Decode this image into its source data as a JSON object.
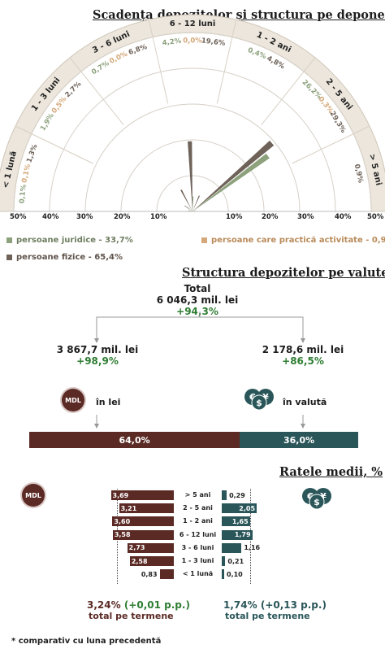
{
  "radial": {
    "title": "Scadența depozitelor și structura pe deponenți",
    "axis_ticks": [
      "50%",
      "40%",
      "30%",
      "20%",
      "10%",
      "10%",
      "20%",
      "30%",
      "40%",
      "50%"
    ],
    "legend": [
      {
        "label": "persoane juridice - 33,7%",
        "color": "#8da17c"
      },
      {
        "label": "persoane care practică activitate - 0,9%",
        "color": "#d4a87a"
      },
      {
        "label": "persoane fizice - 65,4%",
        "color": "#6e6259"
      }
    ]
  },
  "chart_data": [
    {
      "type": "radial-bar",
      "title": "Scadența depozitelor și structura pe deponenți",
      "categories": [
        "< 1 lună",
        "1 - 3 luni",
        "3 - 6 luni",
        "6 - 12 luni",
        "1 - 2 ani",
        "2 - 5 ani",
        "> 5 ani"
      ],
      "range": [
        0,
        50
      ],
      "series": [
        {
          "name": "persoane juridice",
          "color": "#8da17c",
          "values": [
            0.1,
            1.9,
            0.7,
            4.2,
            0.4,
            26.2,
            null
          ]
        },
        {
          "name": "persoane care practică activitate",
          "color": "#d4a87a",
          "values": [
            0.1,
            0.5,
            0.0,
            0.0,
            null,
            0.3,
            null
          ]
        },
        {
          "name": "persoane fizice",
          "color": "#6e6259",
          "values": [
            1.3,
            2.7,
            6.8,
            19.6,
            4.8,
            29.3,
            0.9
          ]
        }
      ],
      "labels": [
        {
          "text": "0,1%",
          "color": "#8da17c"
        },
        {
          "text": "0,1%",
          "color": "#d4a87a"
        },
        {
          "text": "1,3%",
          "color": "#6e6259"
        },
        {
          "text": "1,9%",
          "color": "#8da17c"
        },
        {
          "text": "0,5%",
          "color": "#d4a87a"
        },
        {
          "text": "2,7%",
          "color": "#6e6259"
        },
        {
          "text": "0,7%",
          "color": "#8da17c"
        },
        {
          "text": "0,0%",
          "color": "#d4a87a"
        },
        {
          "text": "6,8%",
          "color": "#6e6259"
        },
        {
          "text": "4,2%",
          "color": "#8da17c"
        },
        {
          "text": "0,0%",
          "color": "#d4a87a"
        },
        {
          "text": "19,6%",
          "color": "#6e6259"
        },
        {
          "text": "0,4%",
          "color": "#8da17c"
        },
        {
          "text": "4,8%",
          "color": "#6e6259"
        },
        {
          "text": "26,2%",
          "color": "#8da17c"
        },
        {
          "text": "0,3%",
          "color": "#d4a87a"
        },
        {
          "text": "29,3%",
          "color": "#6e6259"
        },
        {
          "text": "0,9%",
          "color": "#6e6259"
        }
      ]
    },
    {
      "type": "bar",
      "title": "Structura depozitelor pe valute*",
      "categories": [
        "64,0%",
        "36,0%"
      ],
      "values": [
        64.0,
        36.0
      ],
      "colors": [
        "#5b2a25",
        "#2a5659"
      ]
    },
    {
      "type": "bar",
      "title": "Ratele medii, %",
      "categories": [
        "> 5 ani",
        "2 - 5 ani",
        "1 - 2 ani",
        "6 - 12 luni",
        "3 - 6 luni",
        "1 - 3 luni",
        "< 1 lună"
      ],
      "series": [
        {
          "name": "MDL",
          "values": [
            3.69,
            3.21,
            3.6,
            3.58,
            2.73,
            2.58,
            0.83
          ],
          "labels": [
            "3,69",
            "3,21",
            "3,60",
            "3,58",
            "2,73",
            "2,58",
            "0,83"
          ]
        },
        {
          "name": "valută",
          "values": [
            0.29,
            2.05,
            1.65,
            1.79,
            1.16,
            0.21,
            0.1
          ],
          "labels": [
            "0,29",
            "2,05",
            "1,65",
            "1,79",
            "1,16",
            "0,21",
            "0,10"
          ]
        }
      ]
    }
  ],
  "currency": {
    "title": "Structura depozitelor pe valute*",
    "total_label": "Total",
    "total_value": "6 046,3 mil. lei",
    "total_change": "+94,3%",
    "lei_value": "3 867,7 mil. lei",
    "lei_change": "+98,9%",
    "val_value": "2 178,6 mil. lei",
    "val_change": "+86,5%",
    "lei_label": "în lei",
    "val_label": "în valută",
    "mdl_badge": "MDL",
    "lei_share": "64,0%",
    "val_share": "36,0%"
  },
  "rates": {
    "title": "Ratele medii, %",
    "mdl_badge": "MDL",
    "mdl_total": "3,24%",
    "mdl_total_change": "(+0,01 p.p.)",
    "mdl_total_label": "total pe termene",
    "val_total": "1,74%",
    "val_total_change": "(+0,13 p.p.)",
    "val_total_label": "total pe termene"
  },
  "footnote": "* comparativ cu luna precedentă"
}
